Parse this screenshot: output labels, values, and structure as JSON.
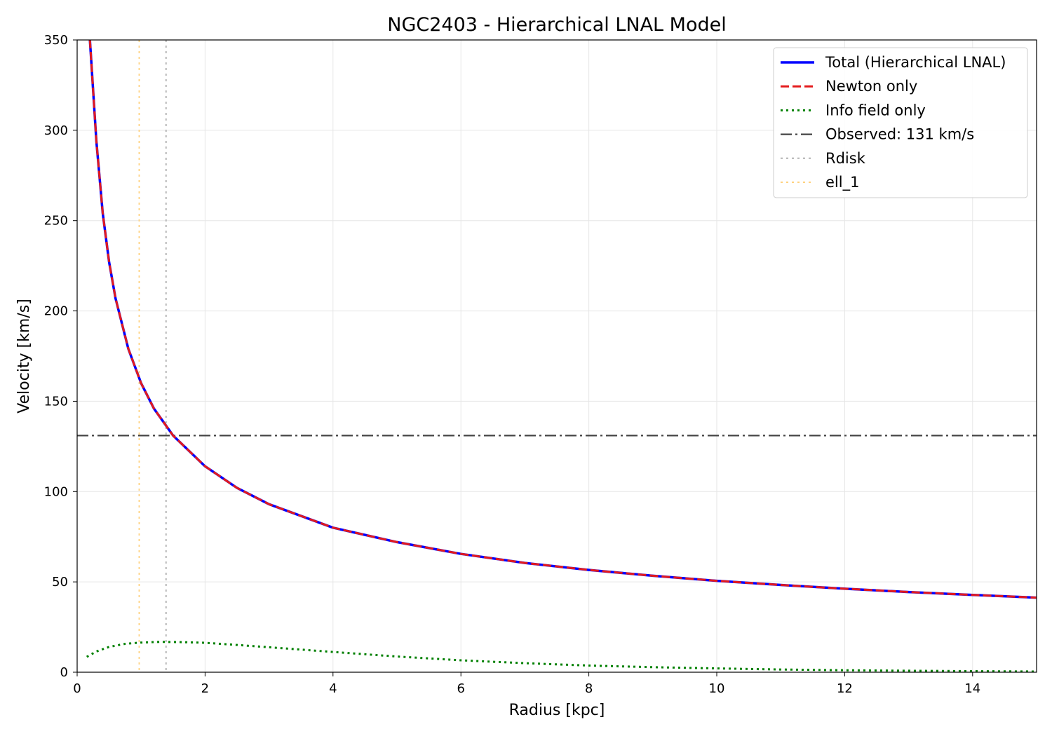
{
  "chart_data": {
    "type": "line",
    "title": "NGC2403 - Hierarchical LNAL Model",
    "xlabel": "Radius [kpc]",
    "ylabel": "Velocity [km/s]",
    "xlim": [
      0,
      15
    ],
    "ylim": [
      0,
      350
    ],
    "xticks": [
      0,
      2,
      4,
      6,
      8,
      10,
      12,
      14
    ],
    "yticks": [
      0,
      50,
      100,
      150,
      200,
      250,
      300,
      350
    ],
    "grid": true,
    "legend_position": "top-right",
    "series": [
      {
        "name": "Total (Hierarchical LNAL)",
        "color": "#0000ff",
        "style": "solid",
        "x": [
          0.2,
          0.25,
          0.3,
          0.4,
          0.5,
          0.6,
          0.8,
          1.0,
          1.2,
          1.5,
          2,
          2.5,
          3,
          4,
          5,
          6,
          7,
          8,
          9,
          10,
          11,
          12,
          13,
          14,
          15
        ],
        "y": [
          350,
          322,
          294,
          254,
          227,
          207,
          179,
          160,
          146,
          131,
          114,
          102,
          93,
          80,
          72,
          65.5,
          60.5,
          56.6,
          53.4,
          50.6,
          48.3,
          46.2,
          44.4,
          42.8,
          41.3
        ]
      },
      {
        "name": "Newton only",
        "color": "#e41a1c",
        "style": "dashed",
        "x": [
          0.2,
          0.25,
          0.3,
          0.4,
          0.5,
          0.6,
          0.8,
          1.0,
          1.2,
          1.5,
          2,
          2.5,
          3,
          4,
          5,
          6,
          7,
          8,
          9,
          10,
          11,
          12,
          13,
          14,
          15
        ],
        "y": [
          350,
          322,
          294,
          254,
          227,
          207,
          179,
          160,
          146,
          131,
          114,
          102,
          93,
          80,
          72,
          65.5,
          60.5,
          56.6,
          53.4,
          50.6,
          48.3,
          46.2,
          44.4,
          42.8,
          41.3
        ]
      },
      {
        "name": "Info field only",
        "color": "#008000",
        "style": "dotted",
        "x": [
          0.15,
          0.3,
          0.5,
          0.75,
          1.0,
          1.3,
          1.6,
          2,
          2.5,
          3,
          4,
          5,
          6,
          7,
          8,
          9,
          10,
          11,
          12,
          13,
          14,
          15
        ],
        "y": [
          8.5,
          11.5,
          14,
          15.7,
          16.4,
          16.8,
          16.7,
          16.3,
          15.1,
          13.8,
          11.2,
          8.7,
          6.6,
          5,
          3.7,
          2.8,
          2.1,
          1.5,
          1.1,
          0.8,
          0.6,
          0.4
        ]
      }
    ],
    "reference_lines": [
      {
        "name": "Observed: 131 km/s",
        "orientation": "horizontal",
        "value": 131,
        "color": "#444444",
        "style": "dashdot"
      },
      {
        "name": "Rdisk",
        "orientation": "vertical",
        "value": 1.39,
        "color": "#b0b0b0",
        "style": "dotted"
      },
      {
        "name": "ell_1",
        "orientation": "vertical",
        "value": 0.97,
        "color": "#ffd27f",
        "style": "dotted"
      }
    ]
  }
}
